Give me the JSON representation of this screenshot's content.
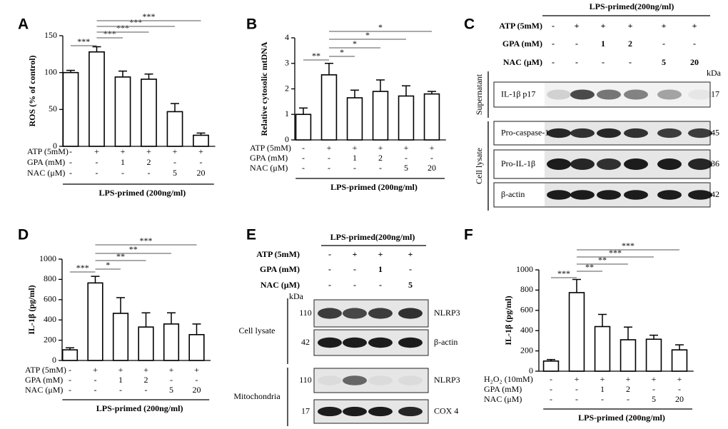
{
  "chart_data": [
    {
      "type": "bar",
      "panel": "A",
      "ylabel": "ROS (% of control)",
      "values": [
        100,
        128,
        94,
        91,
        47,
        15
      ],
      "errors": [
        3,
        7,
        8,
        7,
        11,
        3
      ],
      "ylim": [
        0,
        150
      ],
      "yticks": [
        0,
        50,
        100,
        150
      ],
      "conditions": [
        {
          "label": "ATP (5mM)",
          "signs": [
            "-",
            "+",
            "+",
            "+",
            "+",
            "+"
          ]
        },
        {
          "label": "GPA (mM)",
          "signs": [
            "-",
            "-",
            "1",
            "2",
            "-",
            "-"
          ]
        },
        {
          "label": "NAC (μM)",
          "signs": [
            "-",
            "-",
            "-",
            "-",
            "5",
            "20"
          ]
        }
      ],
      "xlabel": "LPS-primed (200ng/ml)",
      "significance": [
        {
          "from": 0,
          "to": 1,
          "label": "***"
        },
        {
          "from": 1,
          "to": 2,
          "label": "***"
        },
        {
          "from": 1,
          "to": 3,
          "label": "***"
        },
        {
          "from": 1,
          "to": 4,
          "label": "***"
        },
        {
          "from": 1,
          "to": 5,
          "label": "***"
        }
      ]
    },
    {
      "type": "bar",
      "panel": "B",
      "ylabel": "Relative cytosolic mtDNA",
      "values": [
        1.0,
        2.55,
        1.65,
        1.9,
        1.72,
        1.8
      ],
      "errors": [
        0.25,
        0.45,
        0.3,
        0.45,
        0.4,
        0.1
      ],
      "ylim": [
        0,
        4
      ],
      "yticks": [
        0,
        1,
        2,
        3,
        4
      ],
      "conditions": [
        {
          "label": "ATP (5mM)",
          "signs": [
            "-",
            "+",
            "+",
            "+",
            "+",
            "+"
          ]
        },
        {
          "label": "GPA (mM)",
          "signs": [
            "-",
            "-",
            "1",
            "2",
            "-",
            "-"
          ]
        },
        {
          "label": "NAC (μM)",
          "signs": [
            "-",
            "-",
            "-",
            "-",
            "5",
            "20"
          ]
        }
      ],
      "xlabel": "LPS-primed (200ng/ml)",
      "significance": [
        {
          "from": 0,
          "to": 1,
          "label": "**"
        },
        {
          "from": 1,
          "to": 2,
          "label": "*"
        },
        {
          "from": 1,
          "to": 3,
          "label": "*"
        },
        {
          "from": 1,
          "to": 4,
          "label": "*"
        },
        {
          "from": 1,
          "to": 5,
          "label": "*"
        }
      ]
    },
    {
      "type": "bar",
      "panel": "D",
      "ylabel": "IL-1β (pg/ml)",
      "values": [
        105,
        765,
        465,
        330,
        360,
        255
      ],
      "errors": [
        20,
        65,
        155,
        140,
        110,
        105
      ],
      "ylim": [
        0,
        1000
      ],
      "yticks": [
        0,
        200,
        400,
        600,
        800,
        1000
      ],
      "conditions": [
        {
          "label": "ATP (5mM)",
          "signs": [
            "-",
            "+",
            "+",
            "+",
            "+",
            "+"
          ]
        },
        {
          "label": "GPA (mM)",
          "signs": [
            "-",
            "-",
            "1",
            "2",
            "-",
            "-"
          ]
        },
        {
          "label": "NAC (μM)",
          "signs": [
            "-",
            "-",
            "-",
            "-",
            "5",
            "20"
          ]
        }
      ],
      "xlabel": "LPS-primed (200ng/ml)",
      "significance": [
        {
          "from": 0,
          "to": 1,
          "label": "***"
        },
        {
          "from": 1,
          "to": 2,
          "label": "*"
        },
        {
          "from": 1,
          "to": 3,
          "label": "**"
        },
        {
          "from": 1,
          "to": 4,
          "label": "**"
        },
        {
          "from": 1,
          "to": 5,
          "label": "***"
        }
      ]
    },
    {
      "type": "bar",
      "panel": "F",
      "ylabel": "IL-1β (pg/ml)",
      "values": [
        100,
        775,
        440,
        310,
        315,
        210
      ],
      "errors": [
        15,
        130,
        120,
        125,
        40,
        50
      ],
      "ylim": [
        0,
        1000
      ],
      "yticks": [
        0,
        200,
        400,
        600,
        800,
        1000
      ],
      "conditions": [
        {
          "label": "H₂O₂ (10mM)",
          "signs": [
            "-",
            "+",
            "+",
            "+",
            "+",
            "+"
          ]
        },
        {
          "label": "GPA (mM)",
          "signs": [
            "-",
            "-",
            "1",
            "2",
            "-",
            "-"
          ]
        },
        {
          "label": "NAC (μM)",
          "signs": [
            "-",
            "-",
            "-",
            "-",
            "5",
            "20"
          ]
        }
      ],
      "xlabel": "LPS-primed (200ng/ml)",
      "significance": [
        {
          "from": 0,
          "to": 1,
          "label": "***"
        },
        {
          "from": 1,
          "to": 2,
          "label": "**"
        },
        {
          "from": 1,
          "to": 3,
          "label": "**"
        },
        {
          "from": 1,
          "to": 4,
          "label": "***"
        },
        {
          "from": 1,
          "to": 5,
          "label": "***"
        }
      ]
    }
  ],
  "blots": [
    {
      "panel": "C",
      "header": "LPS-primed(200ng/ml)",
      "unit": "kDa",
      "conditions": [
        {
          "label": "ATP (5mM)",
          "signs": [
            "-",
            "+",
            "+",
            "+",
            "+",
            "+"
          ]
        },
        {
          "label": "GPA (mM)",
          "signs": [
            "-",
            "-",
            "1",
            "2",
            "-",
            "-"
          ]
        },
        {
          "label": "NAC (μM)",
          "signs": [
            "-",
            "-",
            "-",
            "-",
            "5",
            "20"
          ]
        }
      ],
      "groups": [
        {
          "label": "Supernatant",
          "rows": [
            {
              "name": "IL-1β p17",
              "mw": "17"
            }
          ]
        },
        {
          "label": "Cell lysate",
          "rows": [
            {
              "name": "Pro-caspase-1",
              "mw": "45"
            },
            {
              "name": "Pro-IL-1β",
              "mw": "36"
            },
            {
              "name": "β-actin",
              "mw": "42"
            }
          ]
        }
      ]
    },
    {
      "panel": "E",
      "header": "LPS-primed(200ng/ml)",
      "unit": "kDa",
      "conditions": [
        {
          "label": "ATP (5mM)",
          "signs": [
            "-",
            "+",
            "+",
            "+"
          ]
        },
        {
          "label": "GPA (mM)",
          "signs": [
            "-",
            "-",
            "1",
            "-"
          ]
        },
        {
          "label": "NAC (μM)",
          "signs": [
            "-",
            "-",
            "-",
            "5"
          ]
        }
      ],
      "groups": [
        {
          "label": "Cell lysate",
          "rows": [
            {
              "name": "NLRP3",
              "mw": "110"
            },
            {
              "name": "β-actin",
              "mw": "42"
            }
          ]
        },
        {
          "label": "Mitochondria",
          "rows": [
            {
              "name": "NLRP3",
              "mw": "110"
            },
            {
              "name": "COX 4",
              "mw": "17"
            }
          ]
        }
      ]
    }
  ]
}
